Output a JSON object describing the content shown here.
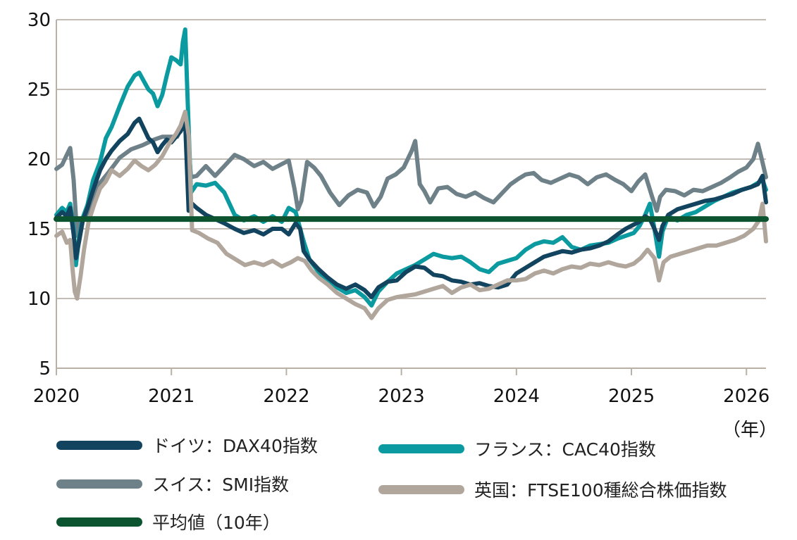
{
  "chart_data": {
    "type": "line",
    "x_unit_label": "（年）",
    "x_ticks": [
      "2020",
      "2021",
      "2022",
      "2023",
      "2024",
      "2025",
      "2026"
    ],
    "y_ticks": [
      "5",
      "10",
      "15",
      "20",
      "25",
      "30"
    ],
    "xlim": [
      2020.0,
      2026.17
    ],
    "ylim": [
      5,
      30
    ],
    "grid": "horizontal",
    "legend_placement": "bottom",
    "series": [
      {
        "name": "スイス：SMI指数",
        "color": "#6e8188",
        "x": [
          2020.0,
          2020.05,
          2020.09,
          2020.12,
          2020.15,
          2020.18,
          2020.21,
          2020.25,
          2020.3,
          2020.38,
          2020.45,
          2020.55,
          2020.65,
          2020.75,
          2020.85,
          2020.92,
          2021.0,
          2021.05,
          2021.1,
          2021.14,
          2021.17,
          2021.22,
          2021.3,
          2021.38,
          2021.46,
          2021.55,
          2021.63,
          2021.72,
          2021.8,
          2021.88,
          2021.95,
          2022.02,
          2022.07,
          2022.1,
          2022.13,
          2022.18,
          2022.24,
          2022.3,
          2022.38,
          2022.46,
          2022.54,
          2022.62,
          2022.7,
          2022.76,
          2022.82,
          2022.88,
          2022.95,
          2023.02,
          2023.09,
          2023.12,
          2023.16,
          2023.2,
          2023.25,
          2023.32,
          2023.4,
          2023.48,
          2023.56,
          2023.64,
          2023.72,
          2023.8,
          2023.88,
          2023.95,
          2024.02,
          2024.08,
          2024.15,
          2024.22,
          2024.3,
          2024.38,
          2024.46,
          2024.54,
          2024.62,
          2024.7,
          2024.78,
          2024.86,
          2024.93,
          2025.0,
          2025.06,
          2025.12,
          2025.18,
          2025.22,
          2025.25,
          2025.3,
          2025.38,
          2025.46,
          2025.54,
          2025.62,
          2025.7,
          2025.78,
          2025.86,
          2025.93,
          2026.0,
          2026.06,
          2026.1,
          2026.13,
          2026.17
        ],
        "y": [
          19.3,
          19.6,
          20.3,
          20.8,
          18.5,
          14.5,
          15.6,
          15.8,
          16.8,
          18.3,
          19.0,
          20.1,
          20.7,
          21.0,
          21.4,
          21.6,
          21.6,
          21.6,
          22.5,
          22.0,
          18.7,
          18.8,
          19.5,
          18.8,
          19.5,
          20.3,
          20.0,
          19.5,
          19.8,
          19.3,
          19.6,
          19.9,
          17.9,
          16.4,
          17.0,
          19.8,
          19.4,
          18.8,
          17.6,
          16.7,
          17.4,
          17.8,
          17.6,
          16.6,
          17.3,
          18.6,
          18.9,
          19.4,
          20.6,
          21.3,
          18.2,
          17.7,
          16.9,
          17.9,
          18.0,
          17.5,
          17.3,
          17.6,
          17.2,
          16.9,
          17.6,
          18.2,
          18.6,
          18.9,
          19.0,
          18.5,
          18.3,
          18.6,
          18.9,
          18.7,
          18.2,
          18.7,
          18.9,
          18.5,
          18.2,
          17.7,
          18.4,
          18.9,
          17.3,
          16.3,
          17.3,
          17.8,
          17.7,
          17.4,
          17.8,
          17.7,
          18.0,
          18.3,
          18.7,
          19.1,
          19.4,
          20.0,
          21.1,
          20.1,
          18.7
        ]
      },
      {
        "name": "フランス：CAC40指数",
        "color": "#0a9a9f",
        "x": [
          2020.0,
          2020.05,
          2020.09,
          2020.12,
          2020.15,
          2020.17,
          2020.2,
          2020.23,
          2020.27,
          2020.32,
          2020.38,
          2020.43,
          2020.48,
          2020.55,
          2020.62,
          2020.68,
          2020.72,
          2020.76,
          2020.8,
          2020.84,
          2020.88,
          2020.92,
          2020.96,
          2021.0,
          2021.04,
          2021.08,
          2021.1,
          2021.12,
          2021.14,
          2021.17,
          2021.22,
          2021.3,
          2021.38,
          2021.46,
          2021.55,
          2021.63,
          2021.72,
          2021.8,
          2021.88,
          2021.96,
          2022.02,
          2022.08,
          2022.12,
          2022.15,
          2022.2,
          2022.28,
          2022.36,
          2022.44,
          2022.52,
          2022.6,
          2022.68,
          2022.74,
          2022.8,
          2022.88,
          2022.96,
          2023.04,
          2023.12,
          2023.2,
          2023.28,
          2023.36,
          2023.44,
          2023.52,
          2023.6,
          2023.68,
          2023.76,
          2023.84,
          2023.92,
          2024.0,
          2024.08,
          2024.16,
          2024.24,
          2024.32,
          2024.4,
          2024.48,
          2024.56,
          2024.64,
          2024.72,
          2024.8,
          2024.88,
          2024.95,
          2025.02,
          2025.07,
          2025.12,
          2025.16,
          2025.2,
          2025.24,
          2025.27,
          2025.32,
          2025.4,
          2025.48,
          2025.56,
          2025.64,
          2025.72,
          2025.8,
          2025.88,
          2025.96,
          2026.04,
          2026.1,
          2026.14,
          2026.17
        ],
        "y": [
          16.0,
          16.5,
          16.2,
          16.8,
          15.0,
          12.4,
          14.5,
          15.8,
          16.7,
          18.5,
          19.8,
          21.5,
          22.3,
          23.8,
          25.2,
          26.0,
          26.2,
          25.6,
          25.0,
          24.7,
          23.8,
          24.6,
          26.0,
          27.3,
          27.1,
          26.8,
          28.4,
          29.3,
          24.5,
          17.6,
          18.2,
          18.1,
          18.3,
          17.6,
          16.0,
          15.6,
          15.9,
          15.5,
          15.9,
          15.5,
          16.5,
          16.2,
          15.0,
          14.1,
          12.8,
          11.9,
          11.2,
          10.8,
          10.4,
          10.6,
          10.1,
          9.5,
          10.5,
          11.2,
          11.8,
          12.1,
          12.4,
          12.8,
          13.2,
          13.0,
          12.9,
          13.0,
          12.6,
          12.1,
          11.9,
          12.5,
          12.7,
          12.9,
          13.5,
          13.9,
          14.1,
          14.0,
          14.4,
          13.7,
          13.5,
          13.8,
          13.9,
          14.0,
          14.3,
          14.5,
          14.7,
          15.2,
          16.0,
          16.8,
          15.0,
          13.0,
          14.8,
          15.9,
          15.6,
          16.0,
          16.2,
          16.6,
          17.0,
          17.3,
          17.6,
          17.8,
          18.0,
          18.3,
          18.5,
          17.8
        ]
      },
      {
        "name": "ドイツ：DAX40指数",
        "color": "#12445f",
        "x": [
          2020.0,
          2020.05,
          2020.09,
          2020.12,
          2020.15,
          2020.17,
          2020.2,
          2020.23,
          2020.27,
          2020.32,
          2020.38,
          2020.43,
          2020.48,
          2020.55,
          2020.62,
          2020.68,
          2020.72,
          2020.76,
          2020.8,
          2020.84,
          2020.88,
          2020.92,
          2020.96,
          2021.0,
          2021.04,
          2021.08,
          2021.12,
          2021.15,
          2021.18,
          2021.22,
          2021.3,
          2021.38,
          2021.46,
          2021.55,
          2021.63,
          2021.72,
          2021.8,
          2021.88,
          2021.96,
          2022.02,
          2022.08,
          2022.12,
          2022.15,
          2022.2,
          2022.28,
          2022.36,
          2022.44,
          2022.52,
          2022.6,
          2022.68,
          2022.74,
          2022.8,
          2022.88,
          2022.96,
          2023.04,
          2023.12,
          2023.2,
          2023.28,
          2023.36,
          2023.44,
          2023.52,
          2023.6,
          2023.68,
          2023.76,
          2023.84,
          2023.92,
          2024.0,
          2024.08,
          2024.16,
          2024.24,
          2024.32,
          2024.4,
          2024.48,
          2024.56,
          2024.64,
          2024.72,
          2024.8,
          2024.88,
          2024.95,
          2025.02,
          2025.07,
          2025.12,
          2025.16,
          2025.2,
          2025.24,
          2025.27,
          2025.32,
          2025.4,
          2025.48,
          2025.56,
          2025.64,
          2025.72,
          2025.8,
          2025.88,
          2025.96,
          2026.04,
          2026.1,
          2026.14,
          2026.17
        ],
        "y": [
          15.8,
          16.2,
          15.9,
          16.5,
          14.6,
          12.9,
          14.2,
          15.6,
          16.5,
          17.8,
          19.2,
          20.0,
          20.6,
          21.3,
          21.8,
          22.6,
          22.9,
          22.2,
          21.5,
          21.2,
          20.5,
          21.0,
          21.4,
          21.2,
          21.6,
          22.0,
          22.6,
          16.3,
          16.8,
          16.5,
          16.0,
          15.7,
          15.4,
          15.0,
          14.7,
          14.9,
          14.6,
          15.0,
          15.0,
          14.6,
          15.4,
          15.0,
          13.4,
          12.8,
          12.1,
          11.5,
          11.0,
          10.7,
          11.0,
          10.6,
          10.1,
          10.8,
          11.2,
          11.3,
          11.9,
          12.3,
          12.2,
          11.7,
          11.6,
          11.3,
          11.2,
          11.0,
          11.1,
          10.9,
          10.8,
          11.0,
          11.8,
          12.2,
          12.6,
          13.0,
          13.2,
          13.4,
          13.3,
          13.5,
          13.6,
          13.8,
          14.1,
          14.6,
          15.0,
          15.3,
          15.5,
          15.9,
          15.7,
          15.0,
          14.2,
          15.2,
          16.0,
          16.4,
          16.6,
          16.8,
          17.0,
          17.1,
          17.3,
          17.5,
          17.8,
          18.0,
          18.2,
          18.8,
          16.9
        ]
      },
      {
        "name": "英国：FTSE100種総合株価指数",
        "color": "#b1a69c",
        "x": [
          2020.0,
          2020.05,
          2020.09,
          2020.12,
          2020.14,
          2020.16,
          2020.18,
          2020.21,
          2020.24,
          2020.28,
          2020.33,
          2020.38,
          2020.43,
          2020.48,
          2020.55,
          2020.62,
          2020.68,
          2020.74,
          2020.8,
          2020.86,
          2020.92,
          2020.98,
          2021.04,
          2021.08,
          2021.12,
          2021.15,
          2021.18,
          2021.24,
          2021.32,
          2021.4,
          2021.48,
          2021.56,
          2021.64,
          2021.72,
          2021.8,
          2021.88,
          2021.96,
          2022.04,
          2022.1,
          2022.16,
          2022.22,
          2022.28,
          2022.36,
          2022.44,
          2022.52,
          2022.6,
          2022.68,
          2022.74,
          2022.8,
          2022.88,
          2022.96,
          2023.04,
          2023.12,
          2023.2,
          2023.28,
          2023.36,
          2023.44,
          2023.52,
          2023.6,
          2023.68,
          2023.76,
          2023.84,
          2023.92,
          2024.0,
          2024.08,
          2024.16,
          2024.24,
          2024.32,
          2024.4,
          2024.48,
          2024.56,
          2024.64,
          2024.72,
          2024.8,
          2024.88,
          2024.95,
          2025.02,
          2025.08,
          2025.14,
          2025.2,
          2025.24,
          2025.28,
          2025.34,
          2025.42,
          2025.5,
          2025.58,
          2025.66,
          2025.74,
          2025.82,
          2025.9,
          2025.98,
          2026.06,
          2026.11,
          2026.14,
          2026.17
        ],
        "y": [
          14.5,
          14.8,
          14.0,
          14.2,
          12.2,
          10.5,
          10.0,
          11.6,
          13.5,
          15.5,
          16.8,
          17.9,
          18.4,
          19.2,
          18.8,
          19.3,
          19.9,
          19.5,
          19.2,
          19.6,
          20.2,
          21.1,
          21.8,
          22.4,
          23.4,
          21.7,
          14.9,
          14.7,
          14.3,
          14.0,
          13.2,
          12.8,
          12.4,
          12.6,
          12.4,
          12.7,
          12.3,
          12.6,
          12.9,
          12.7,
          12.0,
          11.5,
          11.0,
          10.4,
          10.0,
          9.6,
          9.3,
          8.6,
          9.3,
          9.9,
          10.1,
          10.2,
          10.3,
          10.5,
          10.7,
          10.9,
          10.4,
          10.8,
          11.0,
          10.6,
          10.7,
          11.0,
          11.3,
          11.3,
          11.4,
          11.8,
          12.0,
          11.8,
          12.1,
          12.3,
          12.2,
          12.5,
          12.4,
          12.6,
          12.4,
          12.3,
          12.5,
          12.9,
          13.5,
          12.9,
          11.3,
          12.6,
          13.0,
          13.2,
          13.4,
          13.6,
          13.8,
          13.8,
          14.0,
          14.2,
          14.5,
          15.0,
          15.6,
          16.8,
          14.1
        ]
      },
      {
        "name": "平均値（10年）",
        "color": "#0c5330",
        "x": [
          2020.0,
          2026.17
        ],
        "y": [
          15.7,
          15.7
        ]
      }
    ],
    "legend_order": [
      2,
      1,
      0,
      3,
      4
    ]
  }
}
